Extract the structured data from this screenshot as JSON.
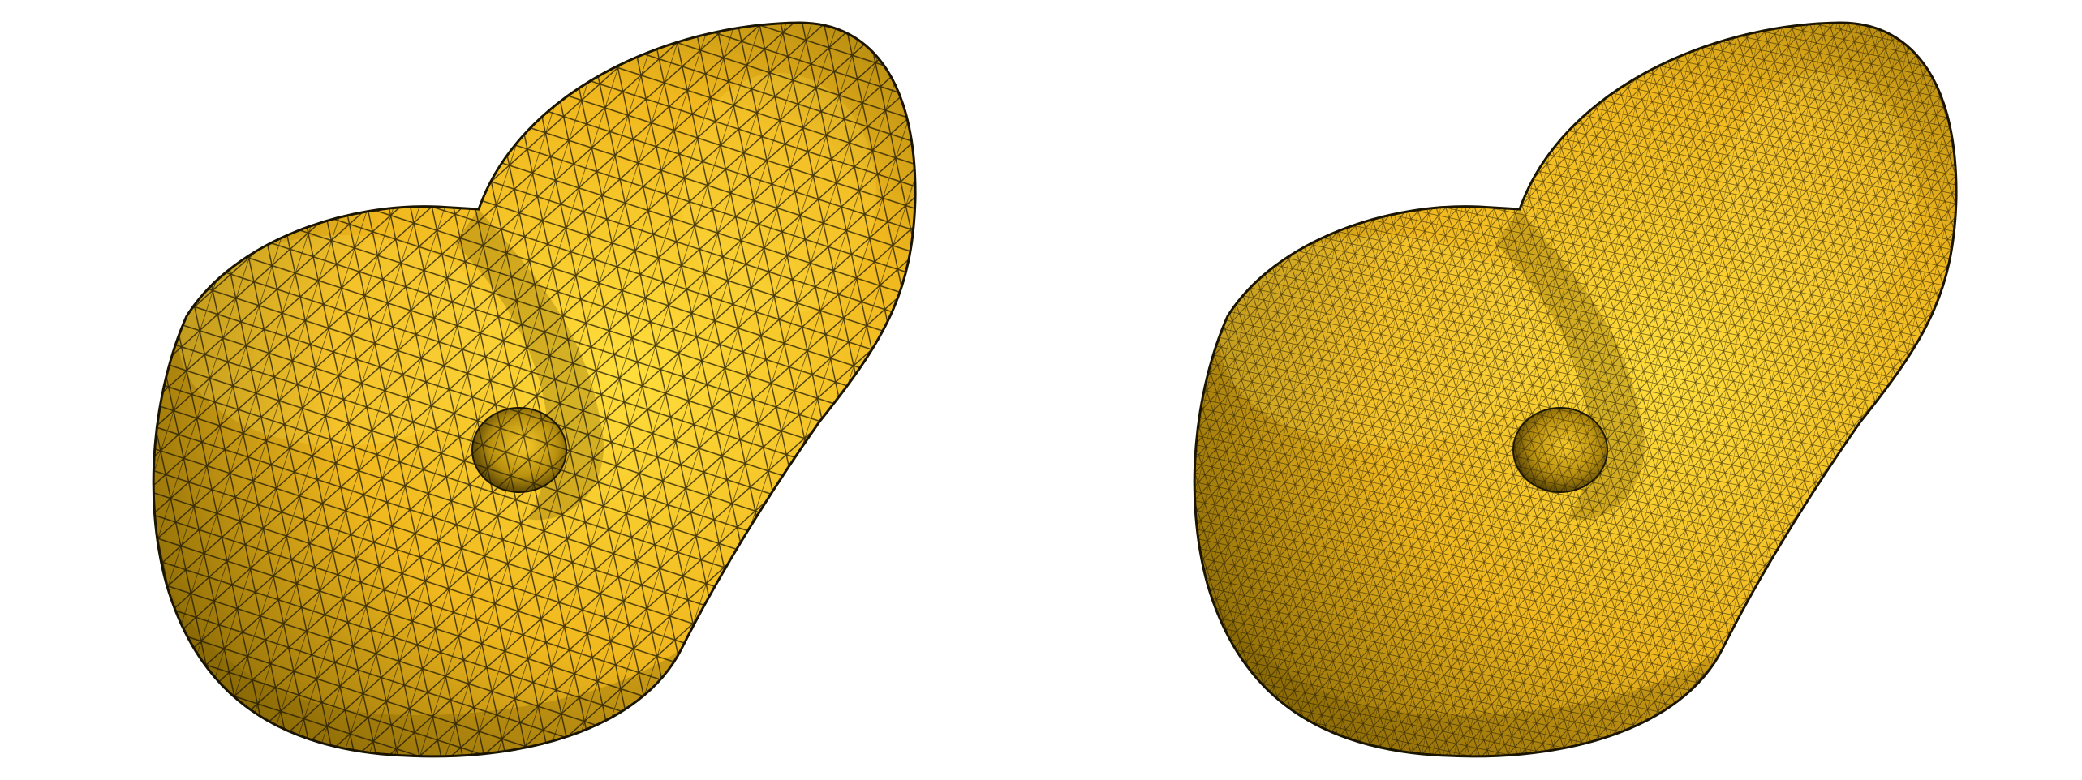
{
  "figure": {
    "panels": [
      {
        "name": "coarse-mesh-panel",
        "mesh_density": "coarse",
        "relative_resolution": 1
      },
      {
        "name": "fine-mesh-panel",
        "mesh_density": "fine",
        "relative_resolution": 2.3
      }
    ]
  },
  "colors": {
    "background": "#ffffff",
    "surface_base": "#f0b81e",
    "surface_highlight": "#ffde3c",
    "surface_shadow": "#8a6a06",
    "wireframe": "#1c1604"
  }
}
